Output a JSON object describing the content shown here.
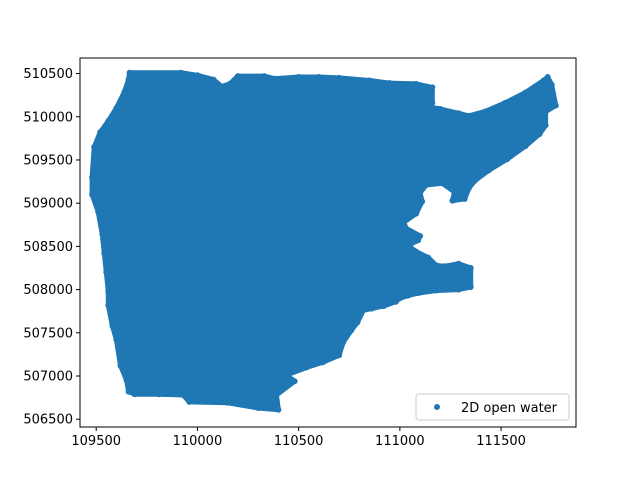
{
  "chart_data": {
    "type": "scatter",
    "title": "",
    "xlabel": "",
    "ylabel": "",
    "xlim": [
      109420,
      111870
    ],
    "ylim": [
      506410,
      510680
    ],
    "x_ticks": [
      109500,
      110000,
      110500,
      111000,
      111500
    ],
    "y_ticks": [
      506500,
      507000,
      507500,
      508000,
      508500,
      509000,
      509500,
      510000,
      510500
    ],
    "grid": false,
    "legend_position": "lower-right",
    "series": [
      {
        "name": "2D open water",
        "color": "#1f77b4",
        "marker": "circle",
        "region_outline": [
          [
            109665,
            510510
          ],
          [
            109920,
            510510
          ],
          [
            110000,
            510480
          ],
          [
            110080,
            510430
          ],
          [
            110120,
            510350
          ],
          [
            110160,
            510380
          ],
          [
            110200,
            510470
          ],
          [
            110330,
            510470
          ],
          [
            110380,
            510440
          ],
          [
            110500,
            510460
          ],
          [
            110600,
            510460
          ],
          [
            110700,
            510450
          ],
          [
            110850,
            510420
          ],
          [
            110950,
            510390
          ],
          [
            111080,
            510380
          ],
          [
            111160,
            510340
          ],
          [
            111160,
            510160
          ],
          [
            111130,
            510120
          ],
          [
            111200,
            510090
          ],
          [
            111290,
            510040
          ],
          [
            111340,
            510010
          ],
          [
            111420,
            510060
          ],
          [
            111520,
            510160
          ],
          [
            111620,
            510280
          ],
          [
            111710,
            510420
          ],
          [
            111730,
            510460
          ],
          [
            111750,
            510370
          ],
          [
            111770,
            510130
          ],
          [
            111720,
            510060
          ],
          [
            111720,
            509900
          ],
          [
            111690,
            509800
          ],
          [
            111620,
            509660
          ],
          [
            111530,
            509510
          ],
          [
            111440,
            509380
          ],
          [
            111370,
            509260
          ],
          [
            111340,
            509170
          ],
          [
            111320,
            509050
          ],
          [
            111260,
            509030
          ],
          [
            111270,
            509130
          ],
          [
            111210,
            509230
          ],
          [
            111130,
            509210
          ],
          [
            111100,
            509120
          ],
          [
            111110,
            509020
          ],
          [
            111080,
            508880
          ],
          [
            111020,
            508780
          ],
          [
            111030,
            508710
          ],
          [
            111100,
            508620
          ],
          [
            111090,
            508570
          ],
          [
            111040,
            508510
          ],
          [
            111080,
            508440
          ],
          [
            111140,
            508370
          ],
          [
            111180,
            508280
          ],
          [
            111220,
            508270
          ],
          [
            111290,
            508300
          ],
          [
            111350,
            508250
          ],
          [
            111350,
            508030
          ],
          [
            111290,
            508000
          ],
          [
            111180,
            507990
          ],
          [
            111090,
            507960
          ],
          [
            111040,
            507930
          ],
          [
            111000,
            507900
          ],
          [
            110980,
            507860
          ],
          [
            110920,
            507810
          ],
          [
            110860,
            507780
          ],
          [
            110820,
            507760
          ],
          [
            110790,
            507620
          ],
          [
            110760,
            507530
          ],
          [
            110720,
            507390
          ],
          [
            110700,
            507240
          ],
          [
            110620,
            507160
          ],
          [
            110540,
            507100
          ],
          [
            110440,
            507010
          ],
          [
            110480,
            506940
          ],
          [
            110390,
            506780
          ],
          [
            110400,
            506610
          ],
          [
            110300,
            506630
          ],
          [
            110150,
            506690
          ],
          [
            109960,
            506700
          ],
          [
            109930,
            506780
          ],
          [
            109810,
            506790
          ],
          [
            109690,
            506790
          ],
          [
            109660,
            506820
          ],
          [
            109650,
            506950
          ],
          [
            109620,
            507120
          ],
          [
            109600,
            507420
          ],
          [
            109580,
            507580
          ],
          [
            109560,
            507820
          ],
          [
            109560,
            507980
          ],
          [
            109550,
            508200
          ],
          [
            109540,
            508420
          ],
          [
            109530,
            508640
          ],
          [
            109510,
            508900
          ],
          [
            109480,
            509100
          ],
          [
            109480,
            509300
          ],
          [
            109490,
            509650
          ],
          [
            109520,
            509820
          ],
          [
            109560,
            509950
          ],
          [
            109600,
            510100
          ],
          [
            109640,
            510290
          ],
          [
            109660,
            510430
          ]
        ]
      }
    ]
  }
}
